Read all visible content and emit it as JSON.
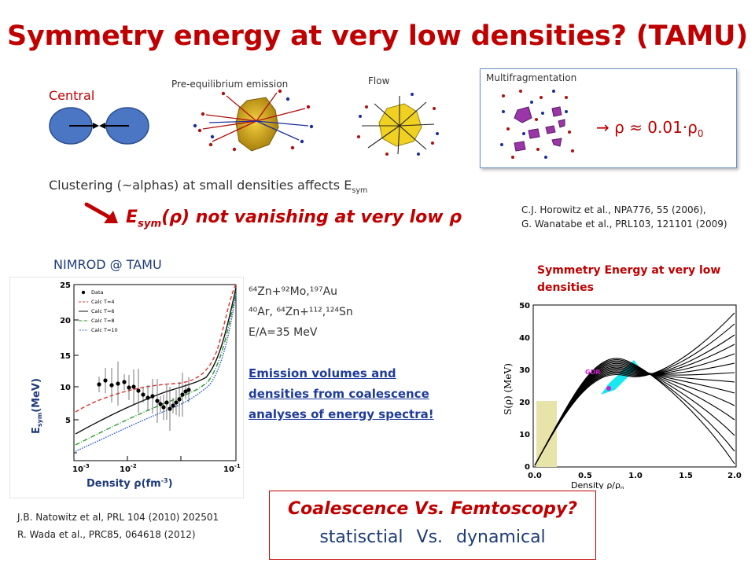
{
  "title": "Symmetry energy at very low densities? (TAMU)",
  "labels": {
    "central": "Central",
    "preeq": "Pre-equilibrium emission",
    "flow": "Flow",
    "multifrag": "Multifragmentation",
    "rho_arrow": "→",
    "rho_text": "ρ ≈ 0.01·ρ",
    "rho_sub": "0"
  },
  "clustering": {
    "text": "Clustering (~alphas) at small densities affects E",
    "sub": "sym"
  },
  "esym_line": {
    "e": "E",
    "sub": "sym",
    "rest": "(ρ) not vanishing at very low ρ"
  },
  "refs_top": [
    "C.J. Horowitz et al., NPA776, 55 (2006),",
    "G. Wanatabe et al., PRL103, 121101 (2009)"
  ],
  "nimrod": "NIMROD @ TAMU",
  "sym_title": "Symmetry Energy at very low densities",
  "reactions": {
    "line1": "⁶⁴Zn+⁹²Mo,¹⁹⁷Au",
    "line2": "⁴⁰Ar, ⁶⁴Zn+¹¹²,¹²⁴Sn",
    "line3": "E/A=35 MeV"
  },
  "emission": [
    "Emission volumes and",
    "densities from coalescence",
    "analyses of energy spectra!"
  ],
  "refs_bottom": [
    "J.B. Natowitz et al, PRL 104 (2010) 202501",
    "R. Wada et al., PRC85, 064618 (2012)"
  ],
  "coal": {
    "title": "Coalescence Vs. Femtoscopy?",
    "sub": "statisctial Vs. dynamical"
  },
  "left_plot": {
    "ylabel": "E",
    "ylabel_sub": "sym",
    "ylabel_rest": "(MeV)",
    "xlabel": "Density ρ(fm",
    "xlabel_sup": "-3",
    "xlabel_end": ")",
    "legend": [
      "Data",
      "Calc T=4",
      "Calc T=6",
      "Calc T=8",
      "Calc T=10"
    ],
    "yticks": [
      "25",
      "20",
      "15",
      "10",
      "5"
    ],
    "xticks": [
      "10",
      "10",
      "10"
    ],
    "xtick_exp": [
      "-3",
      "-2",
      "-1"
    ],
    "colors": {
      "t4": "#e03030",
      "t6": "#111111",
      "t8": "#2a9a2a",
      "t10": "#2a56c8"
    }
  },
  "right_plot": {
    "ylabel": "S(ρ)  (MeV)",
    "xlabel": "Density ρ/ρ",
    "xlabel_sub": "o",
    "yticks": [
      "50",
      "40",
      "30",
      "20",
      "10",
      "0"
    ],
    "xticks": [
      "0.0",
      "0.5",
      "1.0",
      "1.5",
      "2.0"
    ],
    "gdr": "GDR",
    "colors": {
      "band": "#00e5f0",
      "shade": "#e8e3a8",
      "gdr": "#d020d0"
    }
  }
}
